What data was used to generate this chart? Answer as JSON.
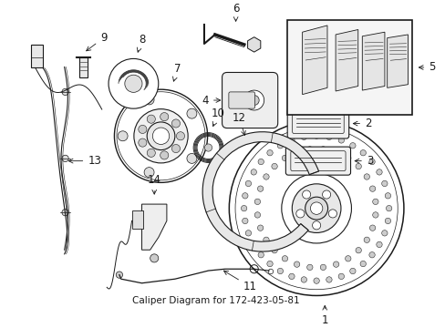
{
  "title": "Caliper Diagram for 172-423-05-81",
  "bg_color": "#ffffff",
  "line_color": "#1a1a1a",
  "fig_width": 4.89,
  "fig_height": 3.6,
  "dpi": 100,
  "title_fontsize": 7.5,
  "label_fontsize": 8.5
}
